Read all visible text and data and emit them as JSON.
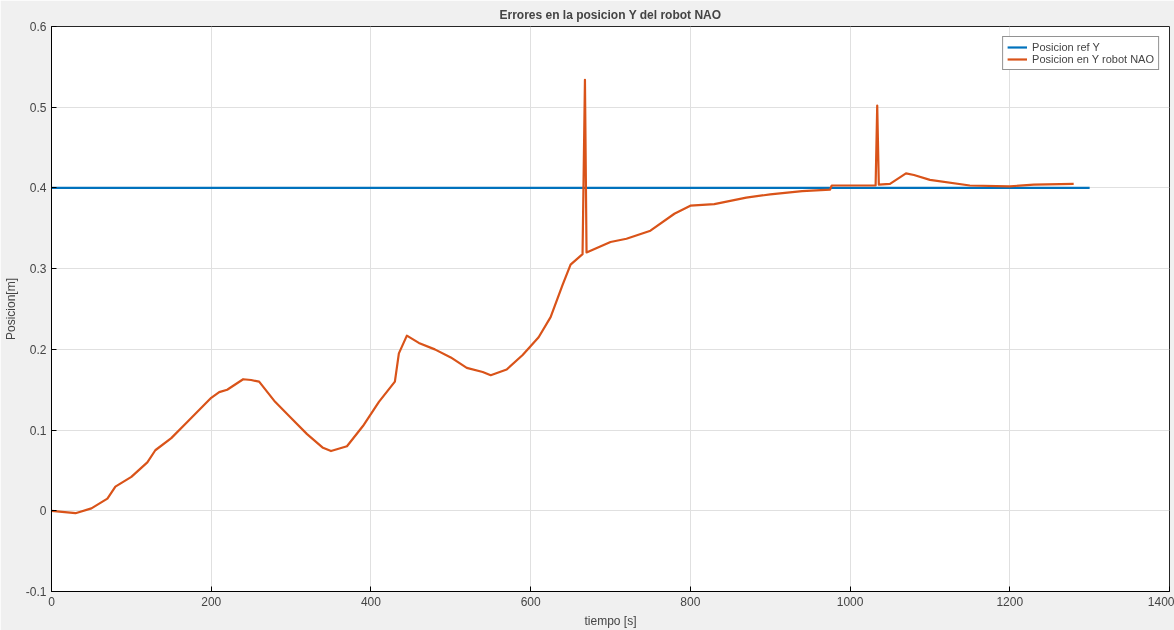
{
  "chart_data": {
    "type": "line",
    "title": "Errores en la posicion Y del robot NAO",
    "xlabel": "tiempo [s]",
    "ylabel": "Posicion[m]",
    "xlim": [
      0,
      1400
    ],
    "xticks": [
      0,
      200,
      400,
      600,
      800,
      1000,
      1200,
      1400
    ],
    "ylim": [
      -0.1,
      0.6
    ],
    "yticks": [
      -0.1,
      0,
      0.1,
      0.2,
      0.3,
      0.4,
      0.5,
      0.6
    ],
    "grid": true,
    "legend": "top right",
    "line_style": "solid",
    "marker": "none",
    "series": [
      {
        "name": "Posicion ref Y",
        "color": "#0072bd",
        "x": [
          0,
          1300
        ],
        "values": [
          0.4,
          0.4
        ]
      },
      {
        "name": "Posicion en Y robot NAO",
        "color": "#d95319",
        "x": [
          0,
          20,
          30,
          50,
          70,
          80,
          100,
          120,
          130,
          150,
          170,
          200,
          210,
          220,
          240,
          250,
          260,
          280,
          300,
          320,
          340,
          350,
          370,
          390,
          410,
          430,
          435,
          445,
          460,
          480,
          500,
          520,
          540,
          550,
          570,
          590,
          610,
          625,
          640,
          650,
          665,
          668,
          670,
          700,
          720,
          750,
          780,
          800,
          830,
          870,
          900,
          940,
          975,
          977,
          1000,
          1032,
          1034,
          1036,
          1050,
          1070,
          1080,
          1100,
          1150,
          1200,
          1230,
          1280
        ],
        "values": [
          0.0,
          -0.002,
          -0.003,
          0.003,
          0.015,
          0.03,
          0.042,
          0.06,
          0.075,
          0.09,
          0.11,
          0.14,
          0.147,
          0.15,
          0.163,
          0.162,
          0.16,
          0.135,
          0.115,
          0.095,
          0.078,
          0.074,
          0.08,
          0.105,
          0.135,
          0.16,
          0.195,
          0.217,
          0.208,
          0.2,
          0.19,
          0.177,
          0.172,
          0.168,
          0.175,
          0.193,
          0.215,
          0.24,
          0.28,
          0.305,
          0.318,
          0.534,
          0.32,
          0.333,
          0.337,
          0.347,
          0.368,
          0.378,
          0.38,
          0.388,
          0.392,
          0.396,
          0.398,
          0.403,
          0.403,
          0.403,
          0.502,
          0.404,
          0.405,
          0.418,
          0.416,
          0.41,
          0.403,
          0.402,
          0.404,
          0.405
        ]
      }
    ]
  }
}
